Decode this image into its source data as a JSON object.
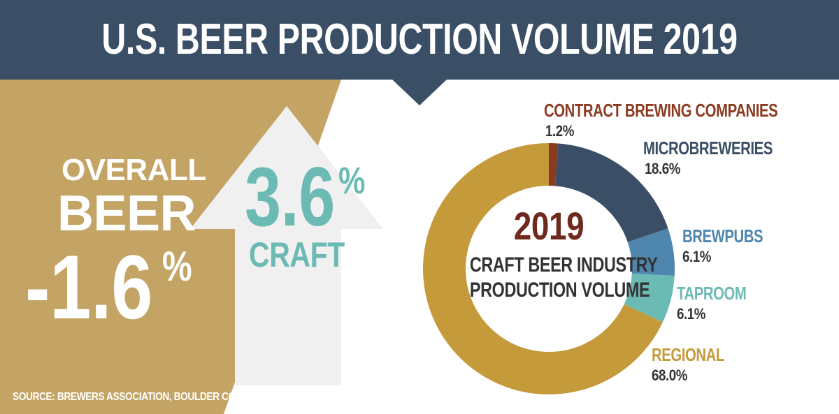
{
  "header": {
    "title": "U.S. BEER PRODUCTION VOLUME 2019"
  },
  "overall": {
    "line1": "OVERALL",
    "line2": "BEER",
    "value": "-1.6",
    "unit": "%"
  },
  "craft": {
    "value": "3.6",
    "unit": "%",
    "label": "CRAFT"
  },
  "source": "SOURCE: BREWERS ASSOCIATION, BOULDER CO",
  "colors": {
    "header": "#3a4f66",
    "gold_panel": "#c4a464",
    "arrow": "#f0f0f0",
    "craft_teal": "#6cbab4",
    "contract": "#8b3a22",
    "microbreweries": "#3a4f66",
    "brewpubs": "#4f86ad",
    "taproom": "#6cbab4",
    "regional": "#c49a3a"
  },
  "chart_data": {
    "type": "pie",
    "title": "2019",
    "subtitle_lines": [
      "CRAFT BEER INDUSTRY",
      "PRODUCTION VOLUME"
    ],
    "slices": [
      {
        "name": "CONTRACT BREWING COMPANIES",
        "label": "1.2%",
        "value": 1.2,
        "color": "#8b3a22"
      },
      {
        "name": "MICROBREWERIES",
        "label": "18.6%",
        "value": 18.6,
        "color": "#3a4f66"
      },
      {
        "name": "BREWPUBS",
        "label": "6.1%",
        "value": 6.1,
        "color": "#4f86ad"
      },
      {
        "name": "TAPROOM",
        "label": "6.1%",
        "value": 6.1,
        "color": "#6cbab4"
      },
      {
        "name": "REGIONAL",
        "label": "68.0%",
        "value": 68.0,
        "color": "#c49a3a"
      }
    ]
  }
}
